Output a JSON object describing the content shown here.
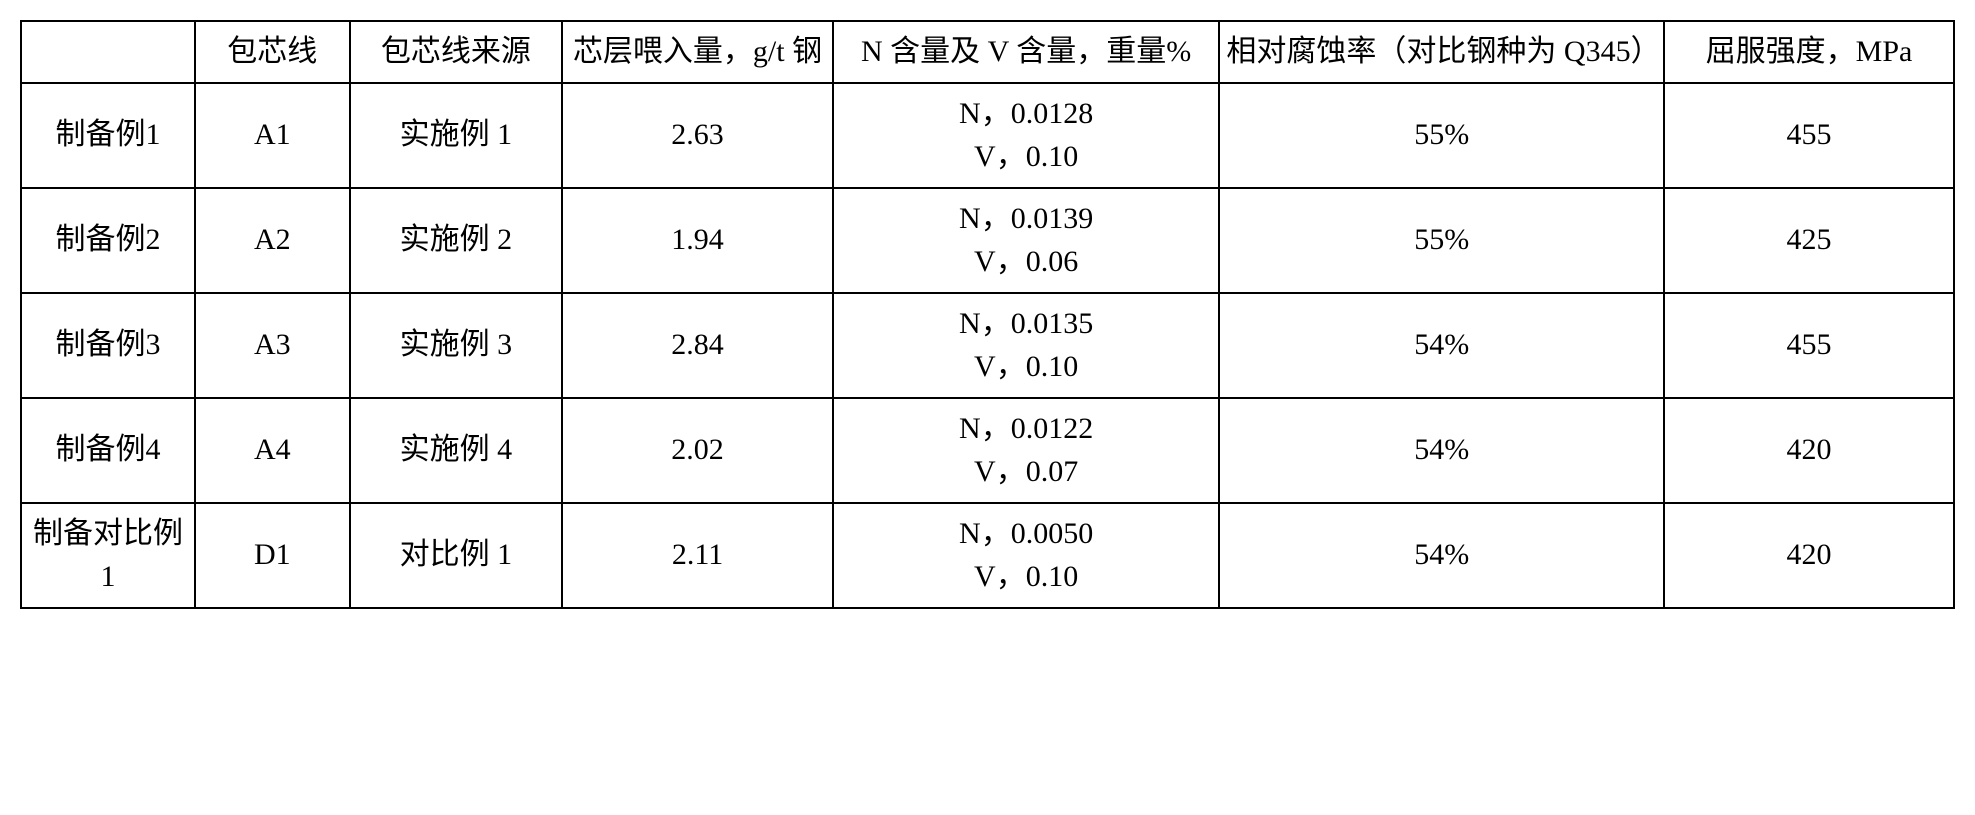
{
  "table": {
    "background_color": "#ffffff",
    "border_color": "#000000",
    "border_width": 2,
    "font_family": "SimSun, Times New Roman, serif",
    "font_size": 30,
    "text_color": "#000000",
    "cell_align": "center",
    "column_widths_pct": [
      9,
      8,
      11,
      14,
      20,
      23,
      15
    ],
    "headers": [
      "",
      "包芯线",
      "包芯线来源",
      "芯层喂入量，g/t 钢",
      "N 含量及 V 含量，重量%",
      "相对腐蚀率（对比钢种为 Q345）",
      "屈服强度，MPa"
    ],
    "rows": [
      {
        "label": "制备例1",
        "wire": "A1",
        "source": "实施例 1",
        "feed": "2.63",
        "nv": "N，0.0128\nV，0.10",
        "corrosion": "55%",
        "yield": "455"
      },
      {
        "label": "制备例2",
        "wire": "A2",
        "source": "实施例 2",
        "feed": "1.94",
        "nv": "N，0.0139\nV，0.06",
        "corrosion": "55%",
        "yield": "425"
      },
      {
        "label": "制备例3",
        "wire": "A3",
        "source": "实施例 3",
        "feed": "2.84",
        "nv": "N，0.0135\nV，0.10",
        "corrosion": "54%",
        "yield": "455"
      },
      {
        "label": "制备例4",
        "wire": "A4",
        "source": "实施例 4",
        "feed": "2.02",
        "nv": "N，0.0122\nV，0.07",
        "corrosion": "54%",
        "yield": "420"
      },
      {
        "label": "制备对比例 1",
        "wire": "D1",
        "source": "对比例 1",
        "feed": "2.11",
        "nv": "N，0.0050\nV，0.10",
        "corrosion": "54%",
        "yield": "420"
      }
    ]
  }
}
